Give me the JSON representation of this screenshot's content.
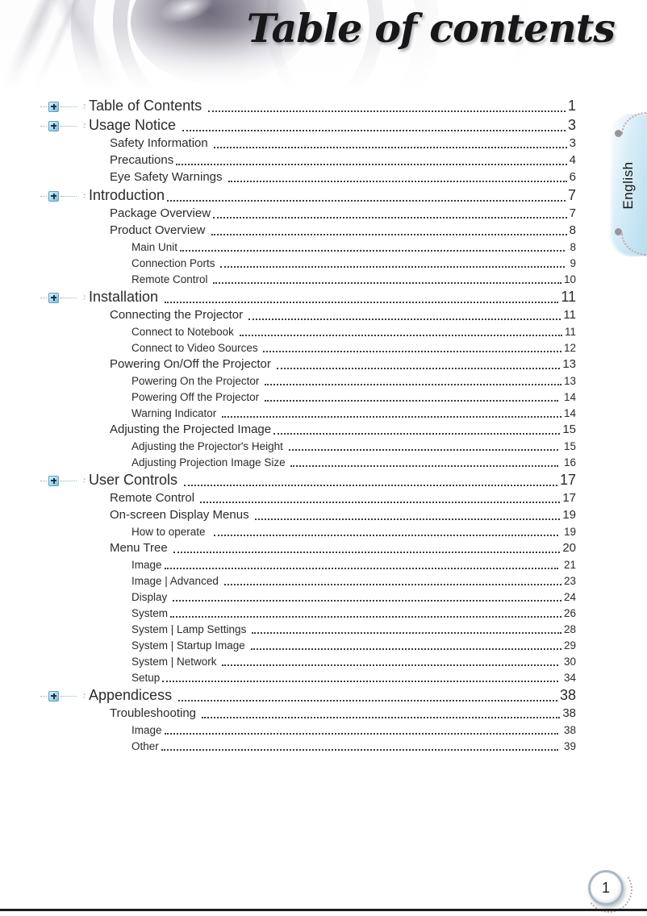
{
  "header": {
    "title": "Table of contents"
  },
  "side_tab": {
    "label": "English"
  },
  "footer": {
    "page_number": "1"
  },
  "colors": {
    "accent_blue": "#7dbede",
    "tab_blue": "#b4ddee",
    "text": "#2b2b2b"
  },
  "toc": {
    "entries": [
      {
        "label": "Table of Contents ",
        "page": "1",
        "level": 1
      },
      {
        "label": "Usage Notice ",
        "page": "3",
        "level": 1
      },
      {
        "label": "Safety Information ",
        "page": "3",
        "level": 2
      },
      {
        "label": "Precautions",
        "page": "4",
        "level": 2
      },
      {
        "label": "Eye Safety Warnings ",
        "page": "6",
        "level": 2
      },
      {
        "label": "Introduction",
        "page": "7",
        "level": 1
      },
      {
        "label": "Package Overview",
        "page": "7",
        "level": 2
      },
      {
        "label": "Product Overview ",
        "page": "8",
        "level": 2
      },
      {
        "label": "Main Unit",
        "page": " 8",
        "level": 3
      },
      {
        "label": "Connection Ports ",
        "page": " 9",
        "level": 3
      },
      {
        "label": "Remote Control ",
        "page": "10",
        "level": 3
      },
      {
        "label": "Installation ",
        "page": "11",
        "level": 1
      },
      {
        "label": "Connecting the Projector ",
        "page": "11",
        "level": 2
      },
      {
        "label": "Connect to Notebook ",
        "page": "11",
        "level": 3
      },
      {
        "label": "Connect to Video Sources ",
        "page": "12",
        "level": 3
      },
      {
        "label": "Powering On/Off the Projector ",
        "page": "13",
        "level": 2
      },
      {
        "label": "Powering On the Projector ",
        "page": "13",
        "level": 3
      },
      {
        "label": "Powering Off the Projector ",
        "page": " 14",
        "level": 3
      },
      {
        "label": "Warning Indicator ",
        "page": "14",
        "level": 3
      },
      {
        "label": "Adjusting the Projected Image",
        "page": "15",
        "level": 2
      },
      {
        "label": "Adjusting the Projector's Height ",
        "page": " 15",
        "level": 3
      },
      {
        "label": "Adjusting Projection Image Size ",
        "page": " 16",
        "level": 3
      },
      {
        "label": "User Controls ",
        "page": "17",
        "level": 1
      },
      {
        "label": "Remote Control ",
        "page": "17",
        "level": 2
      },
      {
        "label": "On-screen Display Menus ",
        "page": "19",
        "level": 2
      },
      {
        "label": "How to operate  ",
        "page": " 19",
        "level": 3
      },
      {
        "label": "Menu Tree ",
        "page": "20",
        "level": 2
      },
      {
        "label": "Image",
        "page": " 21",
        "level": 3
      },
      {
        "label": "Image | Advanced ",
        "page": "23",
        "level": 3
      },
      {
        "label": "Display ",
        "page": "24",
        "level": 3
      },
      {
        "label": "System",
        "page": "26",
        "level": 3
      },
      {
        "label": "System | Lamp Settings ",
        "page": "28",
        "level": 3
      },
      {
        "label": "System | Startup Image ",
        "page": "29",
        "level": 3
      },
      {
        "label": "System | Network ",
        "page": " 30",
        "level": 3
      },
      {
        "label": "Setup",
        "page": " 34",
        "level": 3
      },
      {
        "label": "Appendicess ",
        "page": "38",
        "level": 1
      },
      {
        "label": "Troubleshooting ",
        "page": "38",
        "level": 2
      },
      {
        "label": "Image",
        "page": " 38",
        "level": 3
      },
      {
        "label": "Other",
        "page": " 39",
        "level": 3
      }
    ]
  }
}
